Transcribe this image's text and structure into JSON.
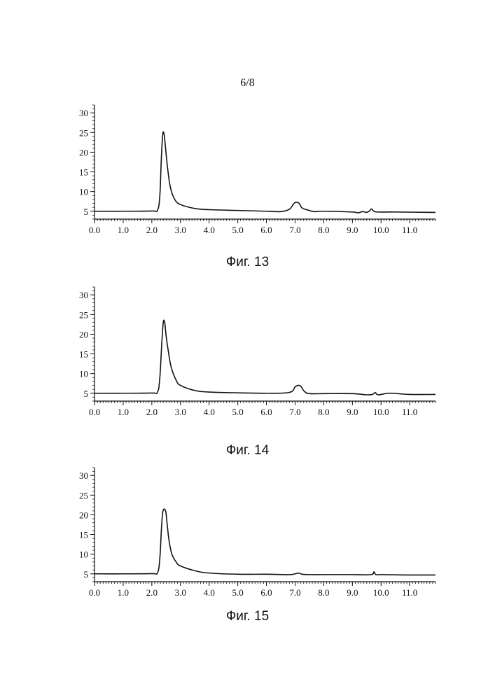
{
  "page": {
    "number_label": "6/8"
  },
  "chart_data": [
    {
      "type": "line",
      "caption": "Фиг. 13",
      "xlim": [
        0,
        11.9
      ],
      "ylim": [
        3,
        32
      ],
      "x_ticks": [
        0,
        1,
        2,
        3,
        4,
        5,
        6,
        7,
        8,
        9,
        10,
        11
      ],
      "x_tick_labels": [
        "0.0",
        "1.0",
        "2.0",
        "3.0",
        "4.0",
        "5.0",
        "6.0",
        "7.0",
        "8.0",
        "9.0",
        "10.0",
        "11.0"
      ],
      "y_ticks": [
        5,
        10,
        15,
        20,
        25,
        30
      ],
      "y_tick_labels": [
        "5",
        "10",
        "15",
        "20",
        "25",
        "30"
      ],
      "grid": false,
      "series": [
        {
          "x": [
            0,
            1.0,
            2.0,
            2.2,
            2.28,
            2.33,
            2.38,
            2.43,
            2.48,
            2.55,
            2.65,
            2.8,
            3.0,
            3.5,
            4.0,
            5.0,
            6.0,
            6.5,
            6.8,
            6.95,
            7.05,
            7.15,
            7.25,
            7.45,
            7.65,
            8.0,
            9.0,
            9.2,
            9.35,
            9.5,
            9.6,
            9.67,
            9.75,
            9.9,
            10.5,
            11.9
          ],
          "y": [
            5.0,
            5.0,
            5.05,
            5.3,
            9.0,
            18.0,
            24.5,
            24.5,
            21.0,
            16.0,
            11.0,
            8.0,
            6.7,
            5.7,
            5.4,
            5.2,
            5.0,
            4.9,
            5.5,
            6.9,
            7.3,
            6.9,
            5.8,
            5.3,
            4.9,
            5.0,
            4.8,
            4.6,
            4.9,
            4.7,
            5.1,
            5.6,
            5.0,
            4.8,
            4.8,
            4.7
          ]
        }
      ]
    },
    {
      "type": "line",
      "caption": "Фиг. 14",
      "xlim": [
        0,
        11.9
      ],
      "ylim": [
        3,
        32
      ],
      "x_ticks": [
        0,
        1,
        2,
        3,
        4,
        5,
        6,
        7,
        8,
        9,
        10,
        11
      ],
      "x_tick_labels": [
        "0.0",
        "1.0",
        "2.0",
        "3.0",
        "4.0",
        "5.0",
        "6.0",
        "7.0",
        "8.0",
        "9.0",
        "10.0",
        "11.0"
      ],
      "y_ticks": [
        5,
        10,
        15,
        20,
        25,
        30
      ],
      "y_tick_labels": [
        "5",
        "10",
        "15",
        "20",
        "25",
        "30"
      ],
      "grid": false,
      "series": [
        {
          "x": [
            0,
            1.0,
            2.0,
            2.2,
            2.28,
            2.35,
            2.4,
            2.45,
            2.5,
            2.58,
            2.68,
            2.85,
            3.0,
            3.5,
            4.0,
            5.0,
            6.0,
            6.8,
            7.0,
            7.1,
            7.2,
            7.32,
            7.5,
            8.0,
            9.0,
            9.5,
            9.7,
            9.8,
            9.9,
            10.3,
            11.0,
            11.9
          ],
          "y": [
            5.0,
            5.0,
            5.05,
            5.3,
            9.0,
            18.0,
            23.0,
            23.0,
            19.5,
            15.5,
            11.5,
            8.3,
            7.0,
            5.7,
            5.3,
            5.1,
            5.0,
            5.2,
            6.6,
            7.0,
            6.8,
            5.5,
            4.9,
            4.9,
            4.9,
            4.6,
            4.7,
            5.2,
            4.6,
            5.0,
            4.7,
            4.7
          ]
        }
      ]
    },
    {
      "type": "line",
      "caption": "Фиг. 15",
      "xlim": [
        0,
        11.9
      ],
      "ylim": [
        3,
        32
      ],
      "x_ticks": [
        0,
        1,
        2,
        3,
        4,
        5,
        6,
        7,
        8,
        9,
        10,
        11
      ],
      "x_tick_labels": [
        "0.0",
        "1.0",
        "2.0",
        "3.0",
        "4.0",
        "5.0",
        "6.0",
        "7.0",
        "8.0",
        "9.0",
        "10.0",
        "11.0"
      ],
      "y_ticks": [
        5,
        10,
        15,
        20,
        25,
        30
      ],
      "y_tick_labels": [
        "5",
        "10",
        "15",
        "20",
        "25",
        "30"
      ],
      "grid": false,
      "series": [
        {
          "x": [
            0,
            1.0,
            2.0,
            2.2,
            2.28,
            2.34,
            2.39,
            2.48,
            2.53,
            2.6,
            2.7,
            2.85,
            3.0,
            3.5,
            4.0,
            5.0,
            6.0,
            6.8,
            7.0,
            7.12,
            7.25,
            7.5,
            8.0,
            9.0,
            9.65,
            9.75,
            9.82,
            10.0,
            11.0,
            11.9
          ],
          "y": [
            5.0,
            5.0,
            5.05,
            5.3,
            9.0,
            17.0,
            21.0,
            21.0,
            18.0,
            13.5,
            10.0,
            8.0,
            7.0,
            5.8,
            5.2,
            4.9,
            4.9,
            4.8,
            5.0,
            5.2,
            4.9,
            4.8,
            4.8,
            4.8,
            4.8,
            5.5,
            4.8,
            4.8,
            4.7,
            4.7
          ]
        }
      ]
    }
  ]
}
